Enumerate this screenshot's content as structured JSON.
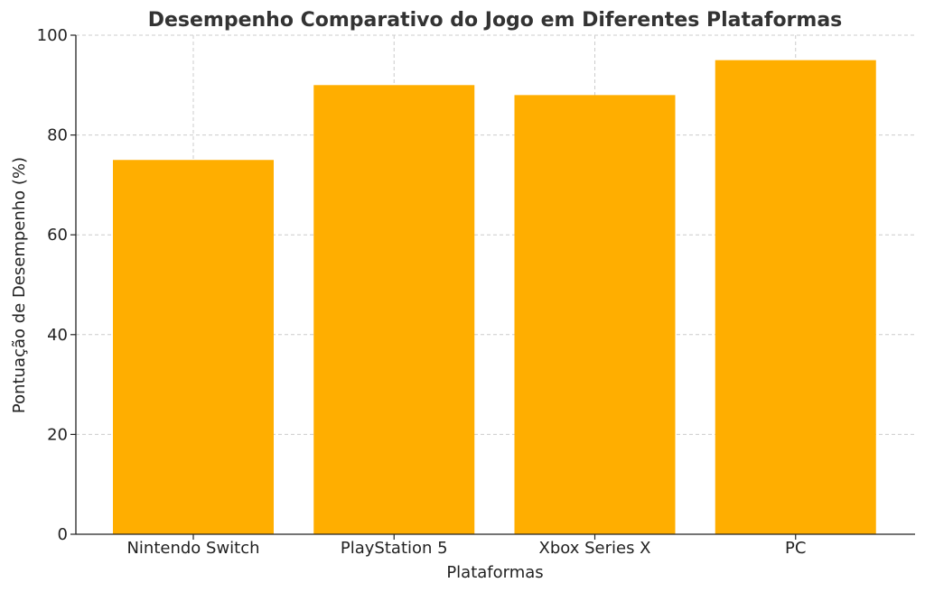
{
  "chart_data": {
    "type": "bar",
    "title": "Desempenho Comparativo do Jogo em Diferentes Plataformas",
    "xlabel": "Plataformas",
    "ylabel": "Pontuação de Desempenho (%)",
    "categories": [
      "Nintendo Switch",
      "PlayStation 5",
      "Xbox Series X",
      "PC"
    ],
    "values": [
      75,
      90,
      88,
      95
    ],
    "ylim": [
      0,
      100
    ],
    "yticks": [
      0,
      20,
      40,
      60,
      80,
      100
    ],
    "grid": true,
    "bar_color": "#FFAE00"
  }
}
